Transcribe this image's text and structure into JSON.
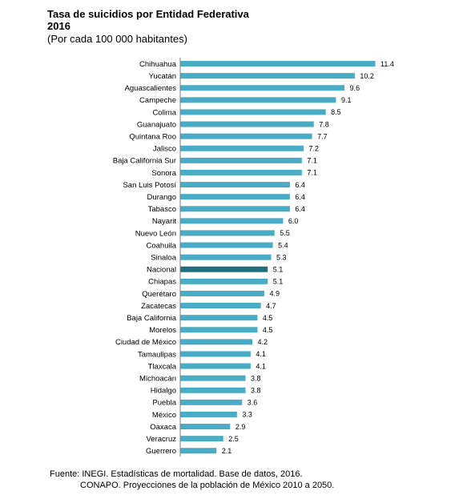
{
  "header": {
    "title": "Tasa de suicidios por Entidad Federativa",
    "year": "2016",
    "subtitle": "(Por cada 100 000 habitantes)"
  },
  "source": {
    "line1": "Fuente: INEGI. Estadísticas de mortalidad. Base de datos, 2016.",
    "line2": "CONAPO. Proyecciones de la población de México 2010 a 2050."
  },
  "colors": {
    "bar": "#4aabc4",
    "highlight": "#1f6f7f",
    "axis": "#7f7f7f"
  },
  "chart_data": {
    "type": "bar",
    "orientation": "horizontal",
    "title": "Tasa de suicidios por Entidad Federativa",
    "subtitle": "(Por cada 100 000 habitantes)",
    "categories": [
      "Chihuahua",
      "Yucatán",
      "Aguascalientes",
      "Campeche",
      "Colima",
      "Guanajuato",
      "Quintana Roo",
      "Jalisco",
      "Baja California Sur",
      "Sonora",
      "San Luis Potosí",
      "Durango",
      "Tabasco",
      "Nayarit",
      "Nuevo León",
      "Coahuila",
      "Sinaloa",
      "Nacional",
      "Chiapas",
      "Querétaro",
      "Zacatecas",
      "Baja California",
      "Morelos",
      "Ciudad de México",
      "Tamaulipas",
      "Tlaxcala",
      "Michoacán",
      "Hidalgo",
      "Puebla",
      "México",
      "Oaxaca",
      "Veracruz",
      "Guerrero"
    ],
    "values": [
      11.4,
      10.2,
      9.6,
      9.1,
      8.5,
      7.8,
      7.7,
      7.2,
      7.1,
      7.1,
      6.4,
      6.4,
      6.4,
      6.0,
      5.5,
      5.4,
      5.3,
      5.1,
      5.1,
      4.9,
      4.7,
      4.5,
      4.5,
      4.2,
      4.1,
      4.1,
      3.8,
      3.8,
      3.6,
      3.3,
      2.9,
      2.5,
      2.1
    ],
    "value_labels": [
      "11.4",
      "10.2",
      "9.6",
      "9.1",
      "8.5",
      "7.8",
      "7.7",
      "7.2",
      "7.1",
      "7.1",
      "6.4",
      "6.4",
      "6.4",
      "6.0",
      "5.5",
      "5.4",
      "5.3",
      "5.1",
      "5.1",
      "4.9",
      "4.7",
      "4.5",
      "4.5",
      "4.2",
      "4.1",
      "4.1",
      "3.8",
      "3.8",
      "3.6",
      "3.3",
      "2.9",
      "2.5",
      "2.1"
    ],
    "highlight": "Nacional",
    "xlim": [
      0,
      11.4
    ],
    "grid": false,
    "legend": "none"
  }
}
